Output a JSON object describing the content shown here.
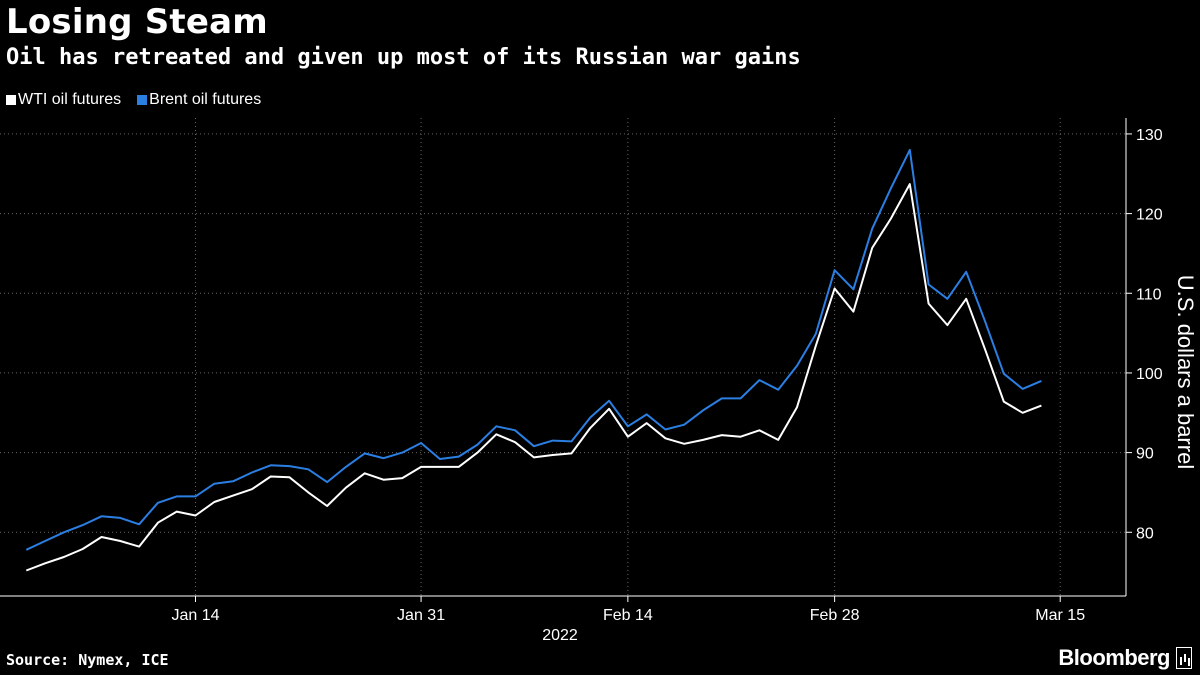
{
  "header": {
    "title": "Losing Steam",
    "subtitle": "Oil has retreated and given up most of its Russian war gains"
  },
  "footer": {
    "source": "Source: Nymex, ICE",
    "brand": "Bloomberg"
  },
  "colors": {
    "background": "#000000",
    "wti": "#ffffff",
    "brent": "#2b7fe3",
    "grid": "#666666"
  },
  "chart_data": {
    "type": "line",
    "title": "Losing Steam",
    "subtitle": "Oil has retreated and given up most of its Russian war gains",
    "xlabel": "2022",
    "ylabel": "U.S. dollars a barrel",
    "ylim": [
      72,
      132
    ],
    "yticks": [
      80,
      90,
      100,
      110,
      120,
      130
    ],
    "x_ticks": [
      "Jan 14",
      "Jan 31",
      "Feb 14",
      "Feb 28",
      "Mar 15"
    ],
    "x_tick_index": [
      9,
      21,
      32,
      43,
      55
    ],
    "x_index_range": [
      -1.4,
      58.5
    ],
    "grid": true,
    "legend_position": "top-left",
    "series": [
      {
        "name": "WTI oil futures",
        "color": "#ffffff",
        "values": [
          75.2,
          76.1,
          76.9,
          77.9,
          79.4,
          78.9,
          78.2,
          81.2,
          82.6,
          82.1,
          83.8,
          84.6,
          85.4,
          87.0,
          86.9,
          85.0,
          83.3,
          85.6,
          87.4,
          86.6,
          86.8,
          88.2,
          88.2,
          88.2,
          90.0,
          92.3,
          91.3,
          89.4,
          89.7,
          89.9,
          93.1,
          95.5,
          92.0,
          93.7,
          91.8,
          91.1,
          91.6,
          92.2,
          92.0,
          92.8,
          91.6,
          95.7,
          103.4,
          110.6,
          107.7,
          115.7,
          119.4,
          123.7,
          108.7,
          106.0,
          109.3,
          102.98,
          96.4,
          95.0,
          95.9
        ]
      },
      {
        "name": "Brent oil futures",
        "color": "#2b7fe3",
        "values": [
          77.8,
          78.9,
          80.0,
          80.9,
          82.0,
          81.8,
          81.0,
          83.7,
          84.5,
          84.5,
          86.1,
          86.4,
          87.5,
          88.4,
          88.3,
          87.9,
          86.3,
          88.2,
          89.9,
          89.3,
          90.0,
          91.2,
          89.2,
          89.5,
          91.0,
          93.3,
          92.8,
          90.8,
          91.5,
          91.4,
          94.4,
          96.5,
          93.3,
          94.8,
          92.9,
          93.5,
          95.3,
          96.8,
          96.8,
          99.1,
          97.9,
          100.9,
          104.9,
          112.9,
          110.5,
          118.1,
          123.2,
          128.0,
          111.1,
          109.3,
          112.7,
          106.5,
          99.9,
          98.0,
          99.0
        ]
      }
    ]
  }
}
